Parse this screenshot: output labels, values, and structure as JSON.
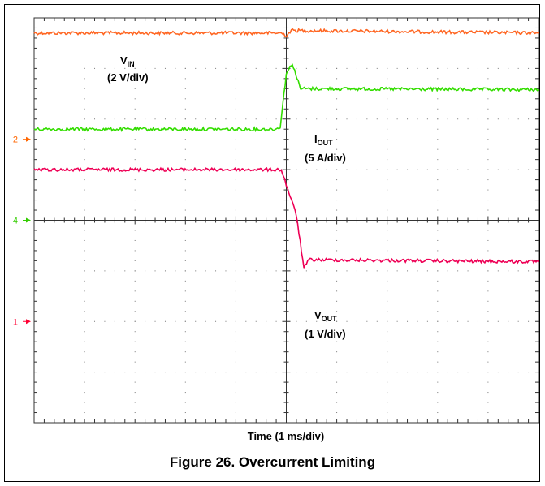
{
  "caption": "Figure 26. Overcurrent Limiting",
  "chart_data": {
    "type": "line",
    "title": "",
    "xlabel": "Time (1 ms/div)",
    "x_divisions": 10,
    "y_divisions": 8,
    "grid": true,
    "channel_markers": [
      {
        "label": "2",
        "color": "#ff6600",
        "level_div": 2.4
      },
      {
        "label": "4",
        "color": "#33cc00",
        "level_div": 4.0
      },
      {
        "label": "1",
        "color": "#ff0033",
        "level_div": 6.0
      }
    ],
    "series": [
      {
        "name": "V",
        "subscript": "IN",
        "scale": "(2 V/div)",
        "color": "#ff6622",
        "x": [
          0,
          4.9,
          5.0,
          5.1,
          10
        ],
        "y": [
          0.3,
          0.3,
          0.35,
          0.25,
          0.3
        ]
      },
      {
        "name": "I",
        "subscript": "OUT",
        "scale": "(5 A/div)",
        "color": "#33dd00",
        "x": [
          0,
          4.8,
          4.88,
          5.0,
          5.12,
          5.28,
          10
        ],
        "y": [
          2.2,
          2.2,
          2.15,
          1.1,
          0.9,
          1.4,
          1.42
        ]
      },
      {
        "name": "V",
        "subscript": "OUT",
        "scale": "(1 V/div)",
        "color": "#ee0055",
        "x": [
          0,
          4.9,
          5.2,
          5.35,
          5.45,
          10
        ],
        "y": [
          3.0,
          3.0,
          3.9,
          4.95,
          4.78,
          4.82
        ]
      }
    ]
  }
}
